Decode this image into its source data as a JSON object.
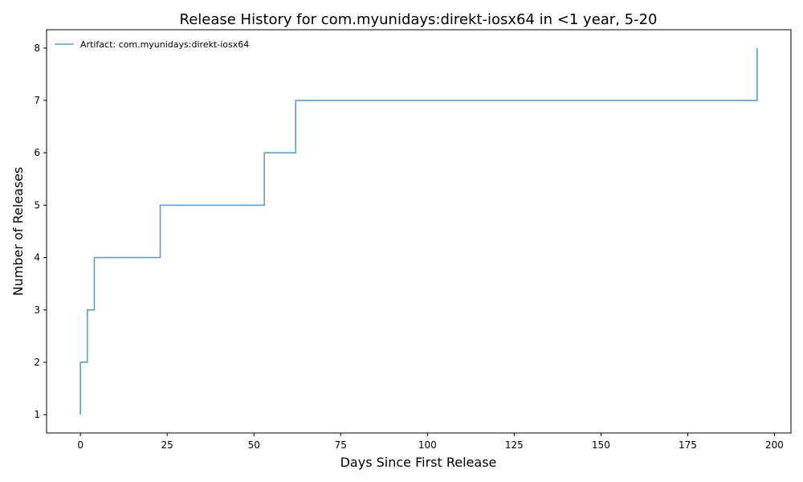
{
  "chart_data": {
    "type": "line",
    "step": true,
    "title": "Release History for com.myunidays:direkt-iosx64 in <1 year, 5-20",
    "xlabel": "Days Since First Release",
    "ylabel": "Number of Releases",
    "xlim": [
      -9.75,
      204.75
    ],
    "ylim": [
      0.65,
      8.35
    ],
    "xticks": [
      0,
      25,
      50,
      75,
      100,
      125,
      150,
      175,
      200
    ],
    "yticks": [
      1,
      2,
      3,
      4,
      5,
      6,
      7,
      8
    ],
    "grid": false,
    "legend_position": "top-left",
    "series": [
      {
        "name": "Artifact: com.myunidays:direkt-iosx64",
        "color": "#5b9fd0",
        "x": [
          0,
          0,
          2,
          4,
          23,
          53,
          62,
          195
        ],
        "y": [
          1,
          2,
          3,
          4,
          5,
          6,
          7,
          8
        ]
      }
    ]
  }
}
